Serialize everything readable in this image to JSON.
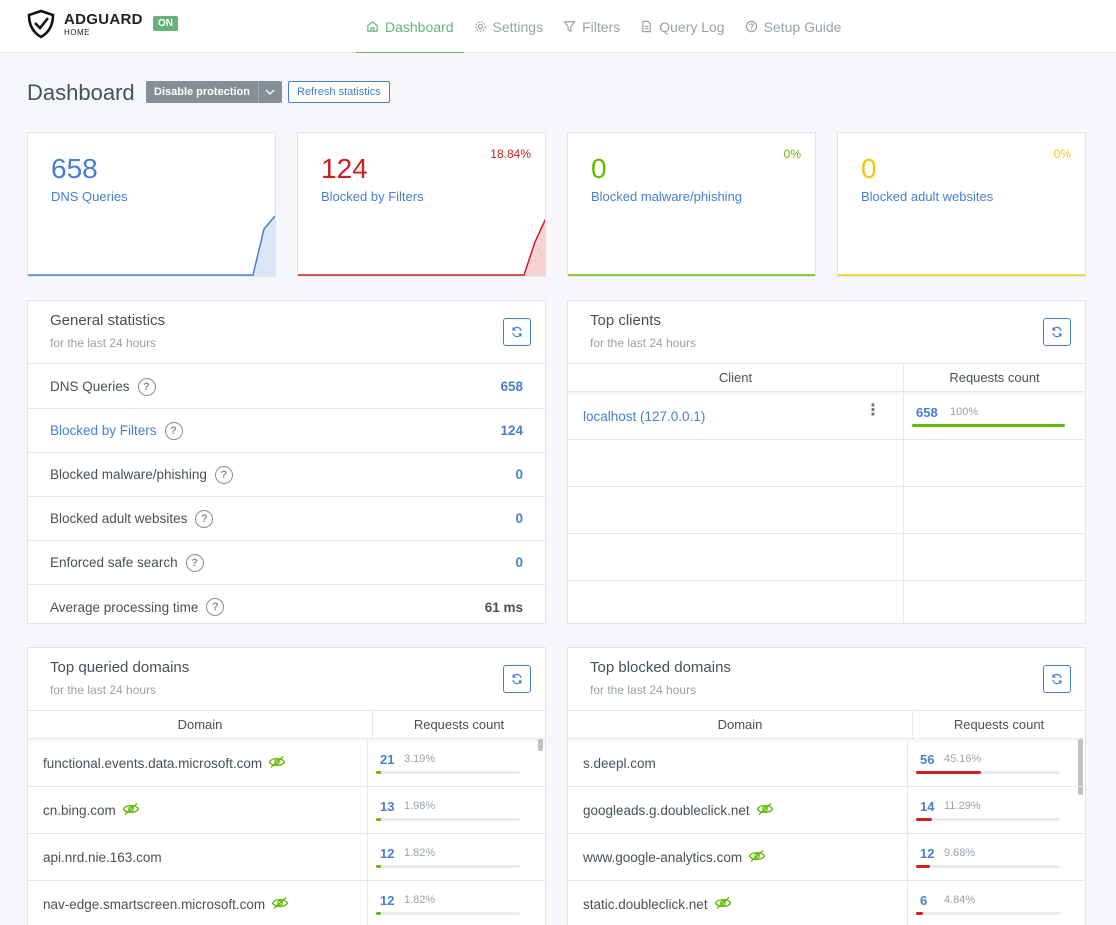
{
  "header": {
    "brand_name": "ADGUARD",
    "brand_sub": "HOME",
    "status_badge": "ON",
    "nav": [
      {
        "label": "Dashboard",
        "icon": "home-icon",
        "active": true
      },
      {
        "label": "Settings",
        "icon": "gear-icon",
        "active": false
      },
      {
        "label": "Filters",
        "icon": "filter-icon",
        "active": false
      },
      {
        "label": "Query Log",
        "icon": "document-icon",
        "active": false
      },
      {
        "label": "Setup Guide",
        "icon": "help-circle-icon",
        "active": false
      }
    ]
  },
  "page": {
    "title": "Dashboard",
    "disable_protection": "Disable protection",
    "refresh_statistics": "Refresh statistics"
  },
  "stats": [
    {
      "value": "658",
      "label": "DNS Queries",
      "percent": "",
      "color": "#467fcf"
    },
    {
      "value": "124",
      "label": "Blocked by Filters",
      "percent": "18.84%",
      "color": "#cd201f"
    },
    {
      "value": "0",
      "label": "Blocked malware/phishing",
      "percent": "0%",
      "color": "#5eba00"
    },
    {
      "value": "0",
      "label": "Blocked adult websites",
      "percent": "0%",
      "color": "#f1c40f"
    }
  ],
  "general": {
    "title": "General statistics",
    "subtitle": "for the last 24 hours",
    "rows": [
      {
        "label": "DNS Queries",
        "value": "658"
      },
      {
        "label": "Blocked by Filters",
        "value": "124"
      },
      {
        "label": "Blocked malware/phishing",
        "value": "0"
      },
      {
        "label": "Blocked adult websites",
        "value": "0"
      },
      {
        "label": "Enforced safe search",
        "value": "0"
      },
      {
        "label": "Average processing time",
        "value": "61 ms"
      }
    ]
  },
  "clients": {
    "title": "Top clients",
    "subtitle": "for the last 24 hours",
    "col_client": "Client",
    "col_count": "Requests count",
    "rows": [
      {
        "client": "localhost (127.0.0.1)",
        "count": "658",
        "percent": "100%",
        "fraction": 1.0
      }
    ]
  },
  "queried": {
    "title": "Top queried domains",
    "subtitle": "for the last 24 hours",
    "col_domain": "Domain",
    "col_count": "Requests count",
    "rows": [
      {
        "domain": "functional.events.data.microsoft.com",
        "count": "21",
        "percent": "3.19%",
        "fraction": 0.0319,
        "tracker": true
      },
      {
        "domain": "cn.bing.com",
        "count": "13",
        "percent": "1.98%",
        "fraction": 0.0198,
        "tracker": true
      },
      {
        "domain": "api.nrd.nie.163.com",
        "count": "12",
        "percent": "1.82%",
        "fraction": 0.0182,
        "tracker": false
      },
      {
        "domain": "nav-edge.smartscreen.microsoft.com",
        "count": "12",
        "percent": "1.82%",
        "fraction": 0.0182,
        "tracker": true
      }
    ]
  },
  "blocked": {
    "title": "Top blocked domains",
    "subtitle": "for the last 24 hours",
    "col_domain": "Domain",
    "col_count": "Requests count",
    "rows": [
      {
        "domain": "s.deepl.com",
        "count": "56",
        "percent": "45.16%",
        "fraction": 0.4516,
        "tracker": false
      },
      {
        "domain": "googleads.g.doubleclick.net",
        "count": "14",
        "percent": "11.29%",
        "fraction": 0.1129,
        "tracker": true
      },
      {
        "domain": "www.google-analytics.com",
        "count": "12",
        "percent": "9.68%",
        "fraction": 0.0968,
        "tracker": true
      },
      {
        "domain": "static.doubleclick.net",
        "count": "6",
        "percent": "4.84%",
        "fraction": 0.0484,
        "tracker": true
      }
    ]
  }
}
